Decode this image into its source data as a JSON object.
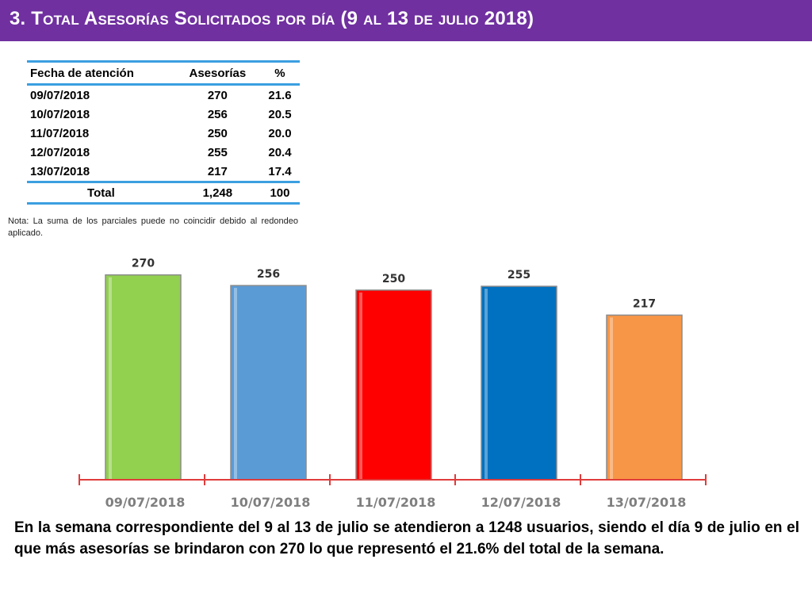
{
  "header": {
    "title": "3.  Total Asesorías Solicitados por día  (9 al 13 de julio 2018)"
  },
  "table": {
    "headers": [
      "Fecha de atención",
      "Asesorías",
      "%"
    ],
    "rows": [
      [
        "09/07/2018",
        "270",
        "21.6"
      ],
      [
        "10/07/2018",
        "256",
        "20.5"
      ],
      [
        "11/07/2018",
        "250",
        "20.0"
      ],
      [
        "12/07/2018",
        "255",
        "20.4"
      ],
      [
        "13/07/2018",
        "217",
        "17.4"
      ]
    ],
    "total": [
      "Total",
      "1,248",
      "100"
    ]
  },
  "note": "Nota: La suma de los parciales puede no coincidir debido al redondeo aplicado.",
  "chart_data": {
    "type": "bar",
    "categories": [
      "09/07/2018",
      "10/07/2018",
      "11/07/2018",
      "12/07/2018",
      "13/07/2018"
    ],
    "values": [
      270,
      256,
      250,
      255,
      217
    ],
    "colors": [
      "#92d050",
      "#5b9bd5",
      "#ff0000",
      "#0070c0",
      "#f79646"
    ],
    "axis_color": "#e03c3c",
    "ylim": [
      0,
      300
    ],
    "data_labels": true
  },
  "summary": "En la semana correspondiente del 9 al 13 de julio se atendieron a 1248 usuarios, siendo el día 9 de julio en el que más asesorías se brindaron con 270 lo que representó el 21.6% del total de la semana."
}
